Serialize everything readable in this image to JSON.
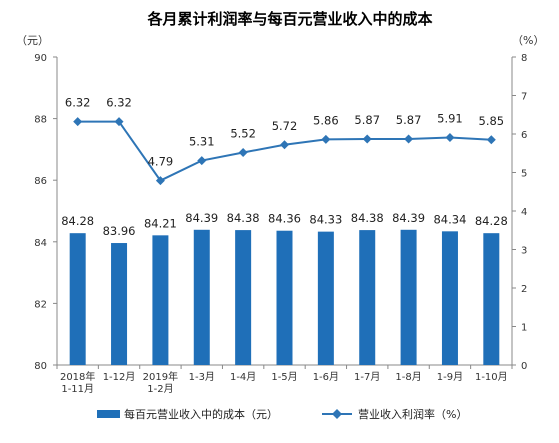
{
  "chart_data": {
    "type": "bar",
    "title": "各月累计利润率与每百元营业收入中的成本",
    "left_unit": "（元）",
    "right_unit": "（%）",
    "categories": [
      [
        "2018年",
        "1-11月"
      ],
      [
        "1-12月"
      ],
      [
        "2019年",
        "1-2月"
      ],
      [
        "1-3月"
      ],
      [
        "1-4月"
      ],
      [
        "1-5月"
      ],
      [
        "1-6月"
      ],
      [
        "1-7月"
      ],
      [
        "1-8月"
      ],
      [
        "1-9月"
      ],
      [
        "1-10月"
      ]
    ],
    "series": [
      {
        "name": "每百元营业收入中的成本（元）",
        "type": "bar",
        "axis": "left",
        "values": [
          84.28,
          83.96,
          84.21,
          84.39,
          84.38,
          84.36,
          84.33,
          84.38,
          84.39,
          84.34,
          84.28
        ],
        "labels": [
          "84.28",
          "83.96",
          "84.21",
          "84.39",
          "84.38",
          "84.36",
          "84.33",
          "84.38",
          "84.39",
          "84.34",
          "84.28"
        ]
      },
      {
        "name": "营业收入利润率（%）",
        "type": "line",
        "axis": "right",
        "values": [
          6.32,
          6.32,
          4.79,
          5.31,
          5.52,
          5.72,
          5.86,
          5.87,
          5.87,
          5.91,
          5.85
        ],
        "labels": [
          "6.32",
          "6.32",
          "4.79",
          "5.31",
          "5.52",
          "5.72",
          "5.86",
          "5.87",
          "5.87",
          "5.91",
          "5.85"
        ]
      }
    ],
    "left_axis": {
      "min": 80,
      "max": 90,
      "ticks": [
        "80",
        "82",
        "84",
        "86",
        "88",
        "90"
      ]
    },
    "right_axis": {
      "min": 0,
      "max": 8,
      "ticks": [
        "0",
        "1",
        "2",
        "3",
        "4",
        "5",
        "6",
        "7",
        "8"
      ]
    },
    "grid": false,
    "legend_position": "bottom",
    "colors": {
      "bar": "#1f6fb8",
      "line": "#2e75b6",
      "axis": "#888888"
    }
  }
}
